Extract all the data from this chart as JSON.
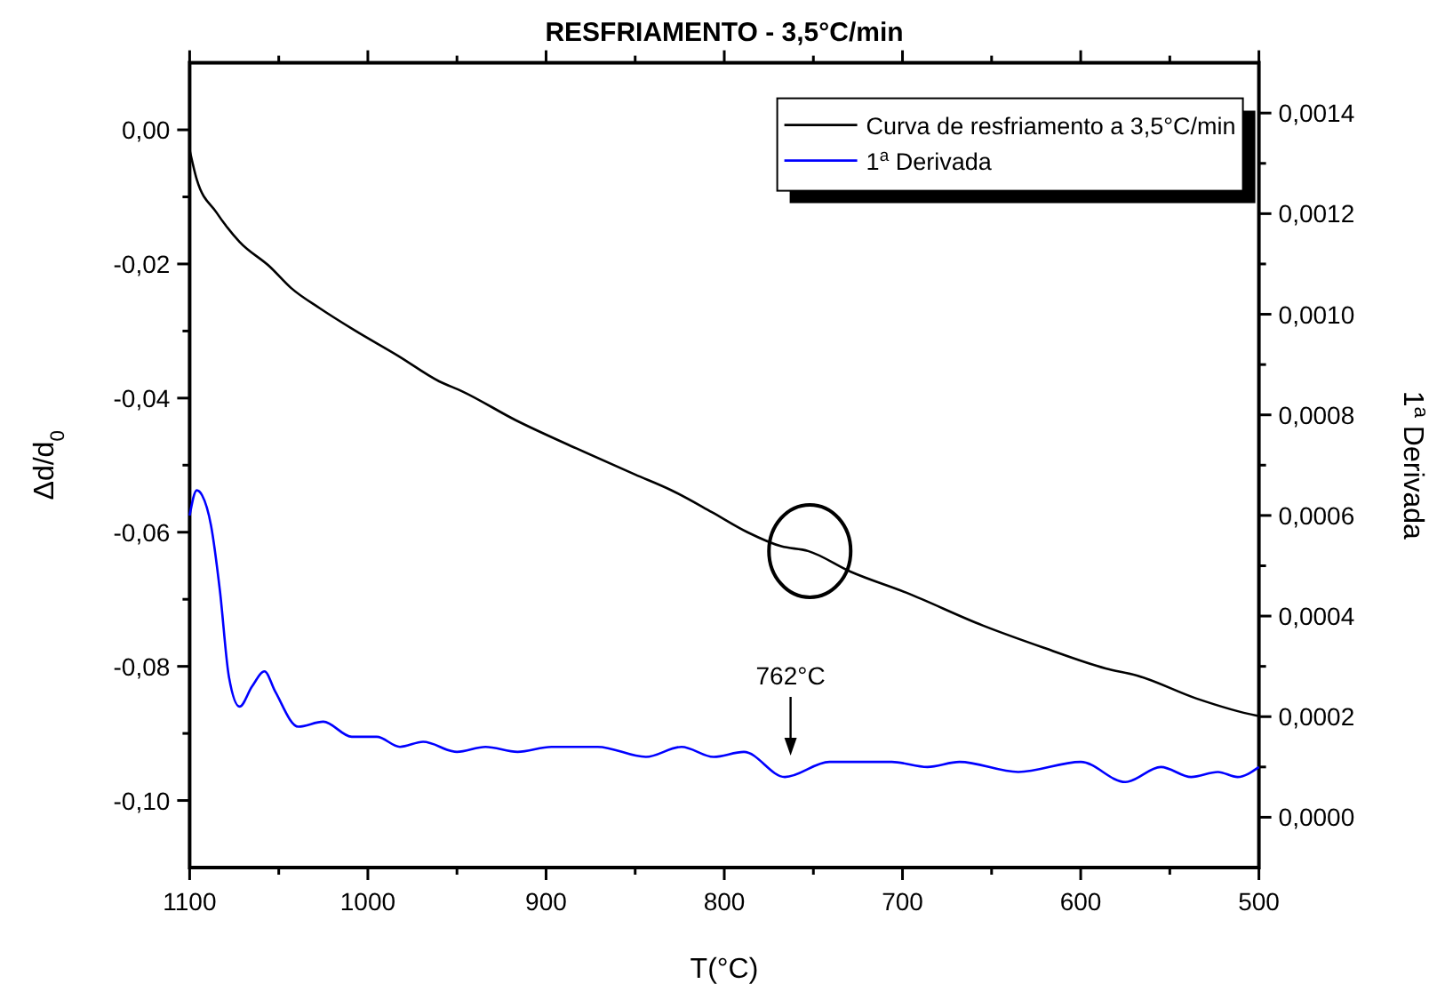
{
  "chart_data": {
    "type": "line",
    "title": "RESFRIAMENTO - 3,5°C/min",
    "xlabel": "T(°C)",
    "ylabel": "Δd/d$_{0}$",
    "y2label": "1$^{a}$ Derivada",
    "xlim": [
      1100,
      500
    ],
    "xticks": [
      1100,
      {
        "value": 1050,
        "label": null
      },
      1000,
      {
        "value": 950,
        "label": null
      },
      900,
      {
        "value": 850,
        "label": null
      },
      800,
      {
        "value": 750,
        "label": null
      },
      700,
      {
        "value": 650,
        "label": null
      },
      600,
      {
        "value": 550,
        "label": null
      },
      500
    ],
    "ylim": [
      -0.11,
      0.01
    ],
    "yticks": [
      {
        "value": -0.1,
        "label": "-0,10"
      },
      {
        "value": -0.09,
        "label": null
      },
      {
        "value": -0.08,
        "label": "-0,08"
      },
      {
        "value": -0.07,
        "label": null
      },
      {
        "value": -0.06,
        "label": "-0,06"
      },
      {
        "value": -0.05,
        "label": null
      },
      {
        "value": -0.04,
        "label": "-0,04"
      },
      {
        "value": -0.03,
        "label": null
      },
      {
        "value": -0.02,
        "label": "-0,02"
      },
      {
        "value": -0.01,
        "label": null
      },
      {
        "value": 0,
        "label": "0,00"
      }
    ],
    "y2lim": [
      -0.0001,
      0.0015
    ],
    "y2ticks": [
      {
        "value": 0,
        "label": "0,0000"
      },
      {
        "value": 0.0001,
        "label": null
      },
      {
        "value": 0.0002,
        "label": "0,0002"
      },
      {
        "value": 0.0003,
        "label": null
      },
      {
        "value": 0.0004,
        "label": "0,0004"
      },
      {
        "value": 0.0005,
        "label": null
      },
      {
        "value": 0.0006,
        "label": "0,0006"
      },
      {
        "value": 0.0007,
        "label": null
      },
      {
        "value": 0.0008,
        "label": "0,0008"
      },
      {
        "value": 0.0009,
        "label": null
      },
      {
        "value": 0.001,
        "label": "0,0010"
      },
      {
        "value": 0.0011,
        "label": null
      },
      {
        "value": 0.0012,
        "label": "0,0012"
      },
      {
        "value": 0.0013,
        "label": null
      },
      {
        "value": 0.0014,
        "label": "0,0014"
      }
    ],
    "legend": "top right",
    "grid": false,
    "marker": "none",
    "line_style": "solid",
    "annotations": [
      "762°C"
    ],
    "series": [
      {
        "name": "Curva de resfriamento a 3,5°C/min",
        "color": "#000000",
        "x": [
          1100,
          1096,
          1085,
          1072,
          1055,
          1043,
          1027,
          1008,
          983,
          960,
          947,
          917,
          883,
          850,
          830,
          807,
          787,
          768,
          753,
          729,
          698,
          655,
          621,
          586,
          568,
          535,
          502,
          500
        ],
        "values": [
          -0.003,
          -0.0074,
          -0.0123,
          -0.0167,
          -0.0204,
          -0.0236,
          -0.0266,
          -0.0298,
          -0.0337,
          -0.0375,
          -0.039,
          -0.0433,
          -0.0475,
          -0.0514,
          -0.0537,
          -0.057,
          -0.06,
          -0.0621,
          -0.0628,
          -0.0659,
          -0.069,
          -0.0739,
          -0.0772,
          -0.0803,
          -0.0814,
          -0.0848,
          -0.0873,
          -0.0874
        ]
      },
      {
        "name": "1$^{a}$ Derivada",
        "color": "#0000ff",
        "axis": "y2",
        "x": [
          1100,
          1096,
          1093,
          1088,
          1083,
          1078,
          1072,
          1065,
          1058,
          1052,
          1039,
          1025,
          1009,
          995,
          982,
          969,
          950,
          934,
          916,
          897,
          871,
          844,
          824,
          806,
          789,
          766,
          741,
          721,
          706,
          686,
          668,
          635,
          600,
          575,
          555,
          538,
          523,
          512,
          500
        ],
        "values": [
          0.0006,
          0.00065,
          0.00064,
          0.00058,
          0.00045,
          0.00028,
          0.00022,
          0.00026,
          0.00029,
          0.00025,
          0.00018,
          0.00019,
          0.00016,
          0.00016,
          0.00014,
          0.00015,
          0.00013,
          0.00014,
          0.00013,
          0.00014,
          0.00014,
          0.00012,
          0.00014,
          0.00012,
          0.00013,
          8e-05,
          0.00011,
          0.00011,
          0.00011,
          0.0001,
          0.00011,
          9e-05,
          0.00011,
          7e-05,
          0.0001,
          8e-05,
          9e-05,
          8e-05,
          0.0001
        ]
      }
    ]
  }
}
